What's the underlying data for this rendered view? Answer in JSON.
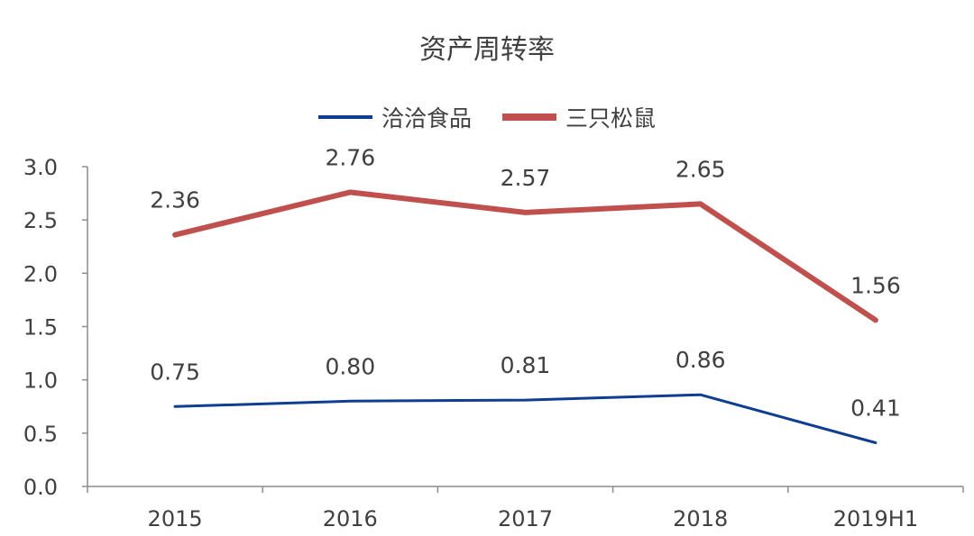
{
  "chart_data": {
    "type": "line",
    "title": "资产周转率",
    "categories": [
      "2015",
      "2016",
      "2017",
      "2018",
      "2019H1"
    ],
    "ylim": [
      0,
      3.0
    ],
    "yticks": [
      "0.0",
      "0.5",
      "1.0",
      "1.5",
      "2.0",
      "2.5",
      "3.0"
    ],
    "legend_position": "top",
    "grid": false,
    "series": [
      {
        "name": "洽洽食品",
        "color": "#0e3d91",
        "values": [
          0.75,
          0.8,
          0.81,
          0.86,
          0.41
        ],
        "labels": [
          "0.75",
          "0.80",
          "0.81",
          "0.86",
          "0.41"
        ]
      },
      {
        "name": "三只松鼠",
        "color": "#c0504d",
        "values": [
          2.36,
          2.76,
          2.57,
          2.65,
          1.56
        ],
        "labels": [
          "2.36",
          "2.76",
          "2.57",
          "2.65",
          "1.56"
        ]
      }
    ]
  }
}
